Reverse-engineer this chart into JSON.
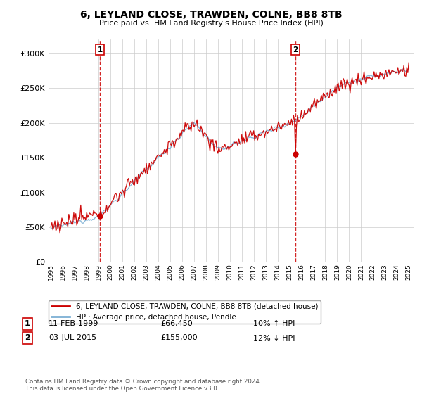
{
  "title": "6, LEYLAND CLOSE, TRAWDEN, COLNE, BB8 8TB",
  "subtitle": "Price paid vs. HM Land Registry's House Price Index (HPI)",
  "legend_line1": "6, LEYLAND CLOSE, TRAWDEN, COLNE, BB8 8TB (detached house)",
  "legend_line2": "HPI: Average price, detached house, Pendle",
  "annotation1_label": "1",
  "annotation1_date": "11-FEB-1999",
  "annotation1_price": "£66,450",
  "annotation1_hpi": "10% ↑ HPI",
  "annotation2_label": "2",
  "annotation2_date": "03-JUL-2015",
  "annotation2_price": "£155,000",
  "annotation2_hpi": "12% ↓ HPI",
  "footer": "Contains HM Land Registry data © Crown copyright and database right 2024.\nThis data is licensed under the Open Government Licence v3.0.",
  "house_color": "#cc0000",
  "hpi_color": "#7bafd4",
  "vline_color": "#cc0000",
  "box_color": "#cc0000",
  "ylim": [
    0,
    320000
  ],
  "yticks": [
    0,
    50000,
    100000,
    150000,
    200000,
    250000,
    300000
  ],
  "start_year": 1995,
  "end_year": 2025,
  "sale1_year": 1999.12,
  "sale1_price": 66450,
  "sale2_year": 2015.5,
  "sale2_price": 155000
}
